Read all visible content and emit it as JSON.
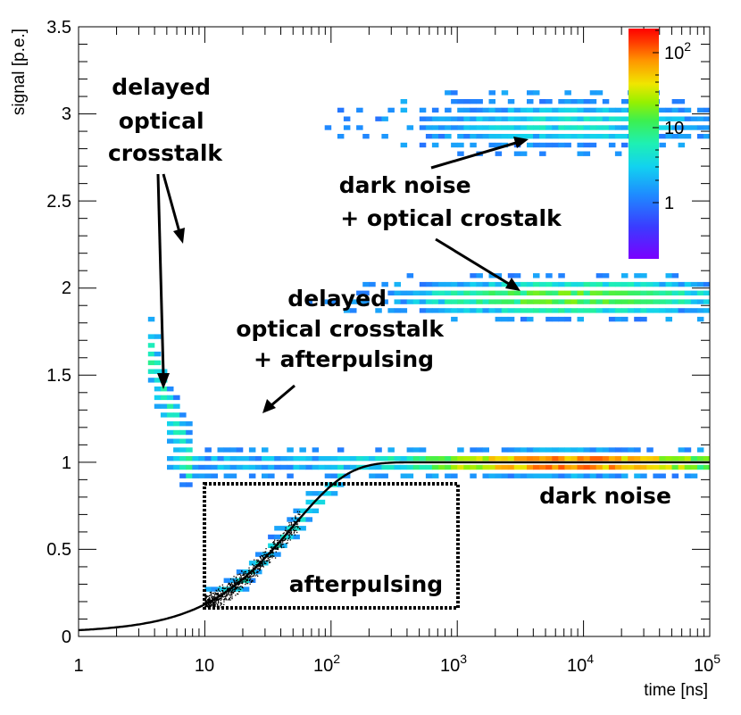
{
  "chart_data": {
    "type": "heatmap",
    "title": "",
    "xlabel": "time [ns]",
    "ylabel": "signal [p.e.]",
    "xscale": "log",
    "xlim": [
      1,
      100000
    ],
    "ylim": [
      0,
      3.5
    ],
    "x_ticks": [
      {
        "value": 1,
        "base": "1",
        "exp": ""
      },
      {
        "value": 10,
        "base": "10",
        "exp": ""
      },
      {
        "value": 100,
        "base": "10",
        "exp": "2"
      },
      {
        "value": 1000,
        "base": "10",
        "exp": "3"
      },
      {
        "value": 10000,
        "base": "10",
        "exp": "4"
      },
      {
        "value": 100000,
        "base": "10",
        "exp": "5"
      }
    ],
    "y_ticks": [
      "0",
      "0.5",
      "1",
      "1.5",
      "2",
      "2.5",
      "3",
      "3.5"
    ],
    "colorbar": {
      "scale": "log",
      "range": [
        0.1,
        200
      ],
      "ticks": [
        {
          "value": 1,
          "base": "1",
          "exp": ""
        },
        {
          "value": 10,
          "base": "10",
          "exp": ""
        },
        {
          "value": 100,
          "base": "10",
          "exp": "2"
        }
      ]
    },
    "fit_curve": {
      "description": "afterpulse recovery model, signal rises from ~0 to 1 p.e.",
      "amplitude": 1.0,
      "tau_ns": 50
    },
    "regions": [
      {
        "name": "dark-noise-band",
        "x_range": [
          5,
          100000
        ],
        "y_center": 1.0,
        "peak_x": 8000,
        "peak_count": 120
      },
      {
        "name": "crosstalk-band",
        "x_range": [
          100,
          100000
        ],
        "y_center": 1.95,
        "peak_x": 8000,
        "peak_count": 12
      },
      {
        "name": "triple-band",
        "x_range": [
          300,
          100000
        ],
        "y_center": 2.95,
        "peak_x": 8000,
        "peak_count": 3
      },
      {
        "name": "afterpulsing-box",
        "x_range": [
          10,
          1000
        ],
        "y_range": [
          0.16,
          0.87
        ]
      }
    ],
    "annotations": [
      {
        "id": "delayed-crosstalk",
        "lines": [
          "delayed",
          "optical",
          "crosstalk"
        ]
      },
      {
        "id": "dark-noise-crosstalk",
        "lines": [
          "dark noise",
          "+ optical crostalk"
        ]
      },
      {
        "id": "delayed-crosstalk-afterpulsing",
        "lines": [
          "delayed",
          "optical crosstalk",
          "+ afterpulsing"
        ]
      },
      {
        "id": "dark-noise",
        "lines": [
          "dark noise"
        ]
      },
      {
        "id": "afterpulsing",
        "lines": [
          "afterpulsing"
        ]
      }
    ]
  }
}
